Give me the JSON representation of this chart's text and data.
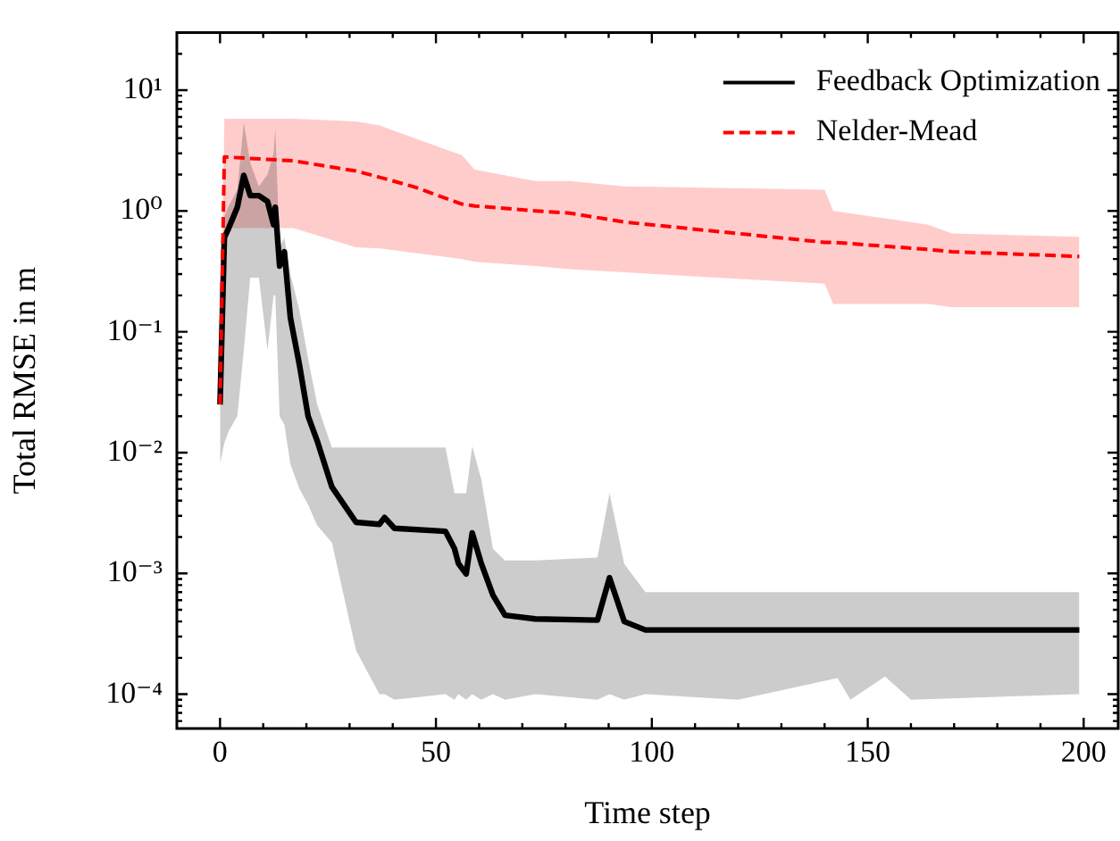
{
  "chart_data": {
    "type": "line",
    "xlabel": "Time step",
    "ylabel": "Total RMSE in m",
    "log": "y",
    "legend": "top right",
    "grid": false,
    "marker": "none",
    "xlim": [
      -10,
      208
    ],
    "xticks": [
      0,
      {
        "value": 10,
        "label": null
      },
      {
        "value": 20,
        "label": null
      },
      {
        "value": 30,
        "label": null
      },
      {
        "value": 40,
        "label": null
      },
      50,
      {
        "value": 60,
        "label": null
      },
      {
        "value": 70,
        "label": null
      },
      {
        "value": 80,
        "label": null
      },
      {
        "value": 90,
        "label": null
      },
      100,
      {
        "value": 110,
        "label": null
      },
      {
        "value": 120,
        "label": null
      },
      {
        "value": 130,
        "label": null
      },
      {
        "value": 140,
        "label": null
      },
      150,
      {
        "value": 160,
        "label": null
      },
      {
        "value": 170,
        "label": null
      },
      {
        "value": 180,
        "label": null
      },
      {
        "value": 190,
        "label": null
      },
      200
    ],
    "ylim": [
      5.2e-05,
      30
    ],
    "yticks": [
      {
        "value": 6e-05,
        "label": null
      },
      {
        "value": 7e-05,
        "label": null
      },
      {
        "value": 8e-05,
        "label": null
      },
      {
        "value": 9e-05,
        "label": null
      },
      {
        "value": 0.0001,
        "label": "10⁻⁴"
      },
      {
        "value": 0.0002,
        "label": null
      },
      {
        "value": 0.0003,
        "label": null
      },
      {
        "value": 0.0004,
        "label": null
      },
      {
        "value": 0.0005,
        "label": null
      },
      {
        "value": 0.0006,
        "label": null
      },
      {
        "value": 0.0007,
        "label": null
      },
      {
        "value": 0.0008,
        "label": null
      },
      {
        "value": 0.0009,
        "label": null
      },
      {
        "value": 0.001,
        "label": "10⁻³"
      },
      {
        "value": 0.002,
        "label": null
      },
      {
        "value": 0.003,
        "label": null
      },
      {
        "value": 0.004,
        "label": null
      },
      {
        "value": 0.005,
        "label": null
      },
      {
        "value": 0.006,
        "label": null
      },
      {
        "value": 0.007,
        "label": null
      },
      {
        "value": 0.008,
        "label": null
      },
      {
        "value": 0.009,
        "label": null
      },
      {
        "value": 0.01,
        "label": "10⁻²"
      },
      {
        "value": 0.02,
        "label": null
      },
      {
        "value": 0.03,
        "label": null
      },
      {
        "value": 0.04,
        "label": null
      },
      {
        "value": 0.05,
        "label": null
      },
      {
        "value": 0.06,
        "label": null
      },
      {
        "value": 0.07,
        "label": null
      },
      {
        "value": 0.08,
        "label": null
      },
      {
        "value": 0.09,
        "label": null
      },
      {
        "value": 0.1,
        "label": "10⁻¹"
      },
      {
        "value": 0.2,
        "label": null
      },
      {
        "value": 0.3,
        "label": null
      },
      {
        "value": 0.4,
        "label": null
      },
      {
        "value": 0.5,
        "label": null
      },
      {
        "value": 0.6,
        "label": null
      },
      {
        "value": 0.7,
        "label": null
      },
      {
        "value": 0.8,
        "label": null
      },
      {
        "value": 0.9,
        "label": null
      },
      {
        "value": 1,
        "label": "10⁰"
      },
      {
        "value": 2,
        "label": null
      },
      {
        "value": 3,
        "label": null
      },
      {
        "value": 4,
        "label": null
      },
      {
        "value": 5,
        "label": null
      },
      {
        "value": 6,
        "label": null
      },
      {
        "value": 7,
        "label": null
      },
      {
        "value": 8,
        "label": null
      },
      {
        "value": 9,
        "label": null
      },
      {
        "value": 10,
        "label": "10¹"
      },
      {
        "value": 20,
        "label": null
      }
    ],
    "series": [
      {
        "name": "Feedback Optimization",
        "color": "#000000",
        "line_style": "solid",
        "x": [
          0,
          1,
          2,
          4,
          5.5,
          7,
          9,
          11,
          12.4,
          12.8,
          13.8,
          14.9,
          16.3,
          18.4,
          20.4,
          22.5,
          25.9,
          31.5,
          36.9,
          38.1,
          40.4,
          52.2,
          54.3,
          55.2,
          57,
          58.4,
          60.5,
          63.2,
          66,
          73,
          87.4,
          90.2,
          93.6,
          98.5,
          120,
          143,
          146,
          154,
          160,
          199
        ],
        "values": [
          0.025,
          0.6,
          0.72,
          1.07,
          1.97,
          1.34,
          1.34,
          1.2,
          0.77,
          1.07,
          0.35,
          0.46,
          0.13,
          0.053,
          0.02,
          0.0125,
          0.0052,
          0.00265,
          0.00255,
          0.0029,
          0.00236,
          0.00223,
          0.0016,
          0.00121,
          0.00099,
          0.00216,
          0.00121,
          0.00066,
          0.00045,
          0.00042,
          0.00041,
          0.00092,
          0.0004,
          0.00034,
          0.00034,
          0.00034,
          0.00034,
          0.00034,
          0.00034,
          0.00034
        ],
        "lower": [
          0.008,
          0.012,
          0.015,
          0.02,
          0.07,
          0.28,
          0.28,
          0.07,
          0.2,
          0.2,
          0.02,
          0.017,
          0.008,
          0.005,
          0.0037,
          0.0025,
          0.0018,
          0.00023,
          0.0001,
          0.0001,
          9e-05,
          0.0001,
          9e-05,
          0.0001,
          9e-05,
          0.0001,
          9e-05,
          0.0001,
          9e-05,
          0.0001,
          9e-05,
          0.0001,
          9e-05,
          0.0001,
          9e-05,
          0.000136,
          9e-05,
          0.00014,
          9e-05,
          0.0001
        ],
        "upper": [
          0.03,
          0.9,
          1.1,
          1.5,
          5.4,
          2.5,
          1.6,
          2,
          3,
          4.8,
          0.5,
          0.6,
          0.3,
          0.15,
          0.06,
          0.025,
          0.011,
          0.011,
          0.011,
          0.011,
          0.011,
          0.011,
          0.0046,
          0.0046,
          0.0046,
          0.0113,
          0.006,
          0.0016,
          0.00128,
          0.00128,
          0.00135,
          0.0046,
          0.0012,
          0.0007,
          0.0007,
          0.0007,
          0.0007,
          0.0007,
          0.0007,
          0.0007
        ]
      },
      {
        "name": "Nelder-Mead",
        "color": "#ff0000",
        "line_style": "dashed",
        "x": [
          0,
          1,
          17,
          31.5,
          37,
          45,
          56,
          59,
          73,
          81,
          93.6,
          140,
          142,
          164,
          169.5,
          199
        ],
        "values": [
          0.025,
          2.8,
          2.6,
          2.14,
          1.9,
          1.58,
          1.14,
          1.1,
          1.0,
          0.96,
          0.81,
          0.55,
          0.55,
          0.48,
          0.46,
          0.42
        ],
        "lower": [
          0.025,
          0.72,
          0.72,
          0.5,
          0.49,
          0.45,
          0.4,
          0.38,
          0.35,
          0.33,
          0.31,
          0.25,
          0.17,
          0.17,
          0.16,
          0.16
        ],
        "upper": [
          0.025,
          5.8,
          5.8,
          5.5,
          5.1,
          4,
          2.9,
          2.2,
          1.77,
          1.77,
          1.6,
          1.5,
          1.0,
          0.77,
          0.65,
          0.61
        ]
      }
    ]
  }
}
